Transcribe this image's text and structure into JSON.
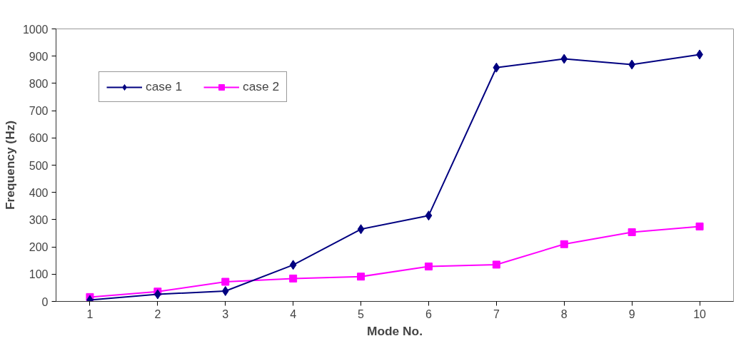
{
  "chart_data": {
    "type": "line",
    "xlabel": "Mode No.",
    "ylabel": "Frequency (Hz)",
    "categories": [
      "1",
      "2",
      "3",
      "4",
      "5",
      "6",
      "7",
      "8",
      "9",
      "10"
    ],
    "series": [
      {
        "name": "case 1",
        "color": "#000080",
        "marker": "diamond",
        "values": [
          5,
          26,
          38,
          134,
          265,
          315,
          858,
          890,
          869,
          906
        ]
      },
      {
        "name": "case 2",
        "color": "#ff00ff",
        "marker": "square",
        "values": [
          16,
          36,
          72,
          84,
          91,
          128,
          135,
          210,
          254,
          275
        ]
      }
    ],
    "ylim": [
      0,
      1000
    ],
    "yticks": [
      0,
      100,
      200,
      300,
      400,
      500,
      600,
      700,
      800,
      900,
      1000
    ],
    "grid": false,
    "legend": "top left",
    "line_style": "solid"
  }
}
